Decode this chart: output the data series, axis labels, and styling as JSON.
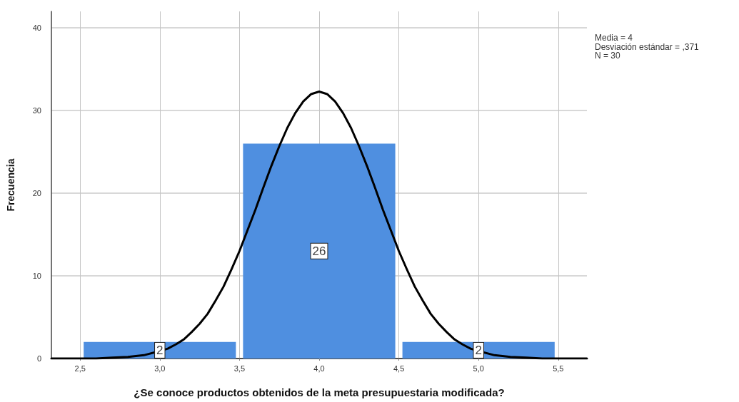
{
  "chart_data": {
    "type": "histogram",
    "xlabel": "¿Se conoce productos obtenidos de la meta presupuestaria modificada?",
    "ylabel": "Frecuencia",
    "annotations": [
      "Media = 4",
      "Desviación estándar = ,371",
      "N = 30"
    ],
    "bins": [
      2.5,
      3.5,
      4.5,
      5.5
    ],
    "series": [
      {
        "color": "#4f8fe0",
        "values": [
          2,
          26,
          2
        ],
        "value_labels": [
          "2",
          "26",
          "2"
        ]
      },
      {
        "type": "line",
        "color": "#000000",
        "marker": "none",
        "x": [
          2.32,
          2.5,
          2.6,
          2.7,
          2.8,
          2.9,
          3.0,
          3.05,
          3.1,
          3.15,
          3.2,
          3.25,
          3.3,
          3.35,
          3.4,
          3.45,
          3.5,
          3.55,
          3.6,
          3.65,
          3.7,
          3.75,
          3.8,
          3.85,
          3.9,
          3.95,
          4.0,
          4.05,
          4.1,
          4.15,
          4.2,
          4.25,
          4.3,
          4.35,
          4.4,
          4.45,
          4.5,
          4.55,
          4.6,
          4.65,
          4.7,
          4.75,
          4.8,
          4.85,
          4.9,
          4.95,
          5.0,
          5.1,
          5.2,
          5.3,
          5.4,
          5.5,
          5.68
        ],
        "values": [
          0.0,
          0.0,
          0.0,
          0.1,
          0.2,
          0.4,
          0.9,
          1.2,
          1.7,
          2.3,
          3.2,
          4.2,
          5.4,
          7.0,
          8.7,
          10.8,
          13.0,
          15.5,
          18.0,
          20.7,
          23.3,
          25.7,
          27.9,
          29.7,
          31.1,
          32.0,
          32.3,
          32.0,
          31.1,
          29.7,
          27.9,
          25.7,
          23.3,
          20.7,
          18.0,
          15.5,
          13.0,
          10.8,
          8.7,
          7.0,
          5.4,
          4.2,
          3.2,
          2.3,
          1.7,
          1.2,
          0.9,
          0.4,
          0.2,
          0.1,
          0.0,
          0.0,
          0.0
        ]
      }
    ],
    "xlim": [
      2.32,
      5.68
    ],
    "xticks": [
      {
        "value": 2.5,
        "label": "2,5"
      },
      {
        "value": 3.0,
        "label": "3,0"
      },
      {
        "value": 3.5,
        "label": "3,5"
      },
      {
        "value": 4.0,
        "label": "4,0"
      },
      {
        "value": 4.5,
        "label": "4,5"
      },
      {
        "value": 5.0,
        "label": "5,0"
      },
      {
        "value": 5.5,
        "label": "5,5"
      }
    ],
    "ylim": [
      0,
      42
    ],
    "yticks": [
      0,
      10,
      20,
      30,
      40
    ],
    "grid": true
  }
}
